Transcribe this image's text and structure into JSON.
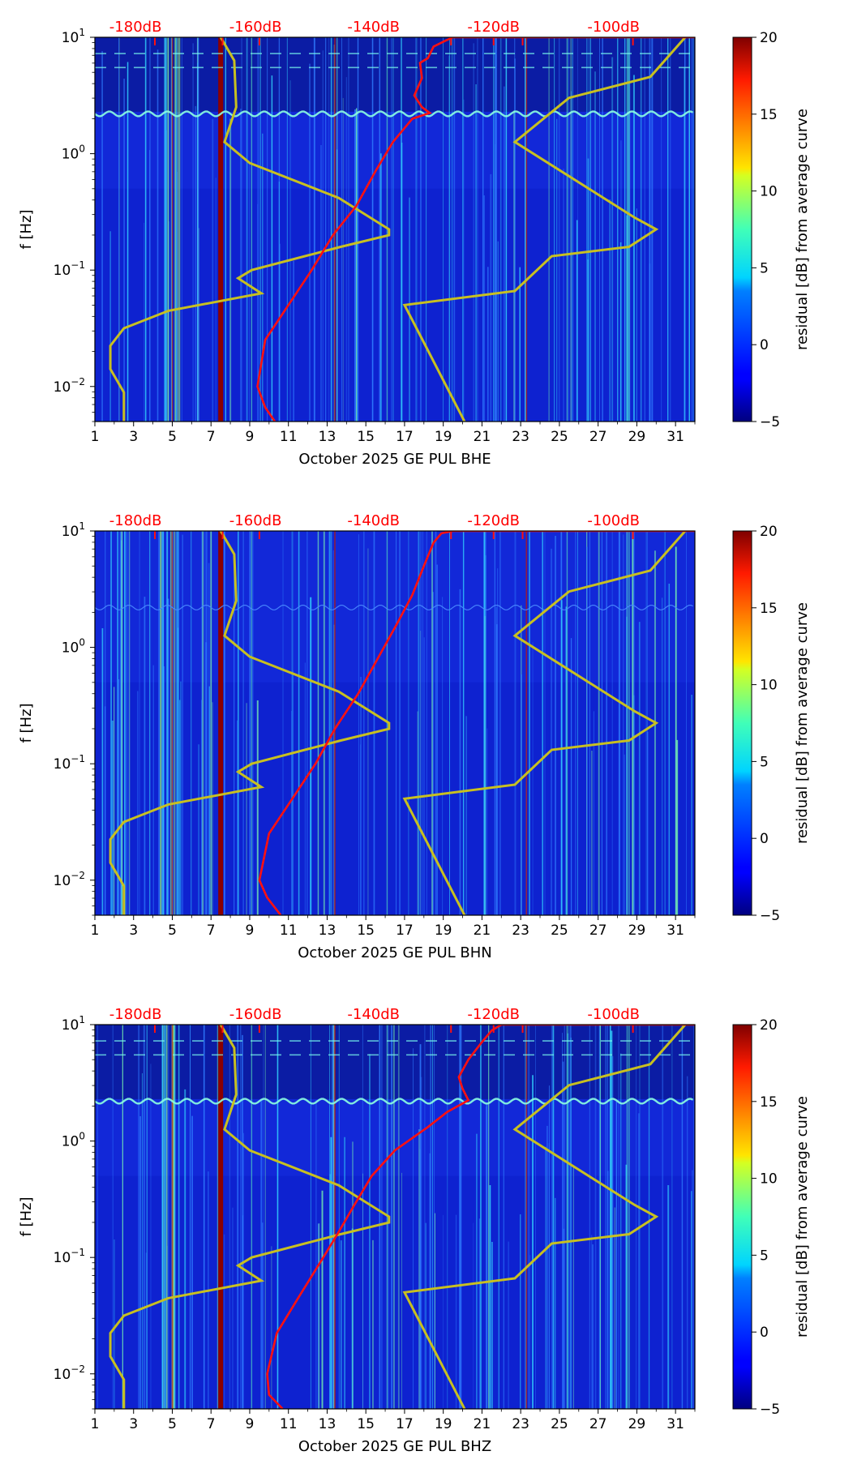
{
  "chart_data": [
    {
      "type": "heatmap",
      "xlabel": "October 2025 GE PUL  BHE",
      "ylabel": "f [Hz]",
      "x_ticks": [
        "1",
        "3",
        "5",
        "7",
        "9",
        "11",
        "13",
        "15",
        "17",
        "19",
        "21",
        "23",
        "25",
        "27",
        "29",
        "31"
      ],
      "xlim": [
        1,
        32
      ],
      "ylim": [
        0.005,
        10
      ],
      "y_scale": "log",
      "y_tick_labels": [
        {
          "value": 10,
          "base": "10",
          "exp": "1"
        },
        {
          "value": 1,
          "base": "10",
          "exp": "0"
        },
        {
          "value": 0.1,
          "base": "10",
          "exp": "−1"
        },
        {
          "value": 0.01,
          "base": "10",
          "exp": "−2"
        }
      ],
      "top_db_labels": [
        "-180dB",
        "-160dB",
        "-140dB",
        "-120dB",
        "-100dB"
      ],
      "colorbar": {
        "label": "residual [dB] from average curve",
        "ticks": [
          "20",
          "15",
          "10",
          "5",
          "0",
          "−5"
        ],
        "range": [
          -5,
          20
        ]
      },
      "noise_model_curves": [
        "yellow",
        "yellow"
      ],
      "average_curve": "red",
      "microseism_band_hz": 2.2,
      "strong_lines_day": [
        7.5
      ],
      "faint_lines_day": [
        5,
        13.4,
        23.3
      ],
      "colors": {
        "background": "#1228d8",
        "average": "#ff1010",
        "models": "#c8c020",
        "strong": "#8b0000"
      }
    },
    {
      "type": "heatmap",
      "xlabel": "October 2025 GE PUL  BHN",
      "ylabel": "f [Hz]",
      "x_ticks": [
        "1",
        "3",
        "5",
        "7",
        "9",
        "11",
        "13",
        "15",
        "17",
        "19",
        "21",
        "23",
        "25",
        "27",
        "29",
        "31"
      ],
      "xlim": [
        1,
        32
      ],
      "ylim": [
        0.005,
        10
      ],
      "y_scale": "log",
      "y_tick_labels": [
        {
          "value": 10,
          "base": "10",
          "exp": "1"
        },
        {
          "value": 1,
          "base": "10",
          "exp": "0"
        },
        {
          "value": 0.1,
          "base": "10",
          "exp": "−1"
        },
        {
          "value": 0.01,
          "base": "10",
          "exp": "−2"
        }
      ],
      "top_db_labels": [
        "-180dB",
        "-160dB",
        "-140dB",
        "-120dB",
        "-100dB"
      ],
      "colorbar": {
        "label": "residual [dB] from average curve",
        "ticks": [
          "20",
          "15",
          "10",
          "5",
          "0",
          "−5"
        ],
        "range": [
          -5,
          20
        ]
      },
      "noise_model_curves": [
        "yellow",
        "yellow"
      ],
      "average_curve": "red",
      "microseism_band_hz": 2.2,
      "strong_lines_day": [
        7.5
      ],
      "faint_lines_day": [
        5,
        13.4,
        23.3
      ],
      "colors": {
        "background": "#1228d8",
        "average": "#ff1010",
        "models": "#c8c020",
        "strong": "#8b0000"
      }
    },
    {
      "type": "heatmap",
      "xlabel": "October 2025 GE PUL  BHZ",
      "ylabel": "f [Hz]",
      "x_ticks": [
        "1",
        "3",
        "5",
        "7",
        "9",
        "11",
        "13",
        "15",
        "17",
        "19",
        "21",
        "23",
        "25",
        "27",
        "29",
        "31"
      ],
      "xlim": [
        1,
        32
      ],
      "ylim": [
        0.005,
        10
      ],
      "y_scale": "log",
      "y_tick_labels": [
        {
          "value": 10,
          "base": "10",
          "exp": "1"
        },
        {
          "value": 1,
          "base": "10",
          "exp": "0"
        },
        {
          "value": 0.1,
          "base": "10",
          "exp": "−1"
        },
        {
          "value": 0.01,
          "base": "10",
          "exp": "−2"
        }
      ],
      "top_db_labels": [
        "-180dB",
        "-160dB",
        "-140dB",
        "-120dB",
        "-100dB"
      ],
      "colorbar": {
        "label": "residual [dB] from average curve",
        "ticks": [
          "20",
          "15",
          "10",
          "5",
          "0",
          "−5"
        ],
        "range": [
          -5,
          20
        ]
      },
      "noise_model_curves": [
        "yellow",
        "yellow"
      ],
      "average_curve": "red",
      "microseism_band_hz": 2.2,
      "strong_lines_day": [
        7.5
      ],
      "faint_lines_day": [
        5,
        13.4,
        23.3
      ],
      "colors": {
        "background": "#1228d8",
        "average": "#ff1010",
        "models": "#c8c020",
        "strong": "#8b0000"
      }
    }
  ]
}
